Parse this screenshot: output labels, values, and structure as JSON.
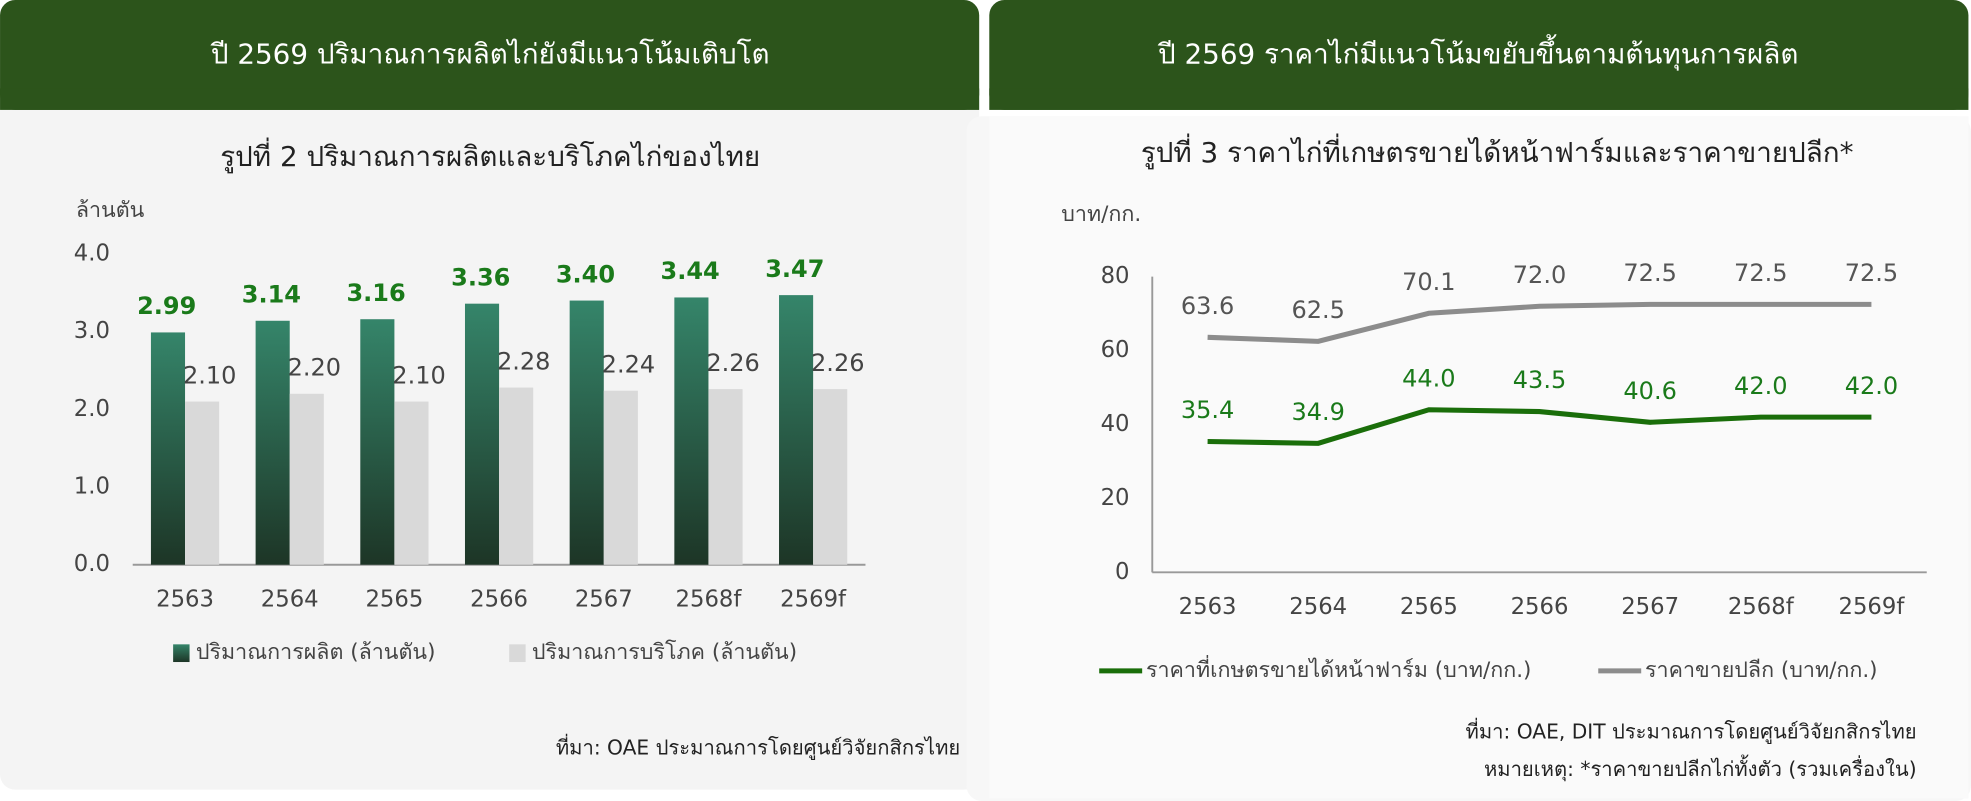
{
  "chart_data": [
    {
      "type": "bar",
      "header": "ปี 2569 ปริมาณการผลิตไก่ยังมีแนวโน้มเติบโต",
      "title": "รูปที่ 2  ปริมาณการผลิตและบริโภคไก่ของไทย",
      "ylabel": "ล้านตัน",
      "categories": [
        "2563",
        "2564",
        "2565",
        "2566",
        "2567",
        "2568f",
        "2569f"
      ],
      "series": [
        {
          "name": "ปริมาณการผลิต (ล้านตัน)",
          "color": "#2e7d5b",
          "values": [
            2.99,
            3.14,
            3.16,
            3.36,
            3.4,
            3.44,
            3.47
          ],
          "value_labels": [
            "2.99",
            "3.14",
            "3.16",
            "3.36",
            "3.40",
            "3.44",
            "3.47"
          ]
        },
        {
          "name": "ปริมาณการบริโภค (ล้านตัน)",
          "color": "#d9d9d9",
          "values": [
            2.1,
            2.2,
            2.1,
            2.28,
            2.24,
            2.26,
            2.26
          ],
          "value_labels": [
            "2.10",
            "2.20",
            "2.10",
            "2.28",
            "2.24",
            "2.26",
            "2.26"
          ]
        }
      ],
      "ylim": [
        0,
        4
      ],
      "yticks": [
        {
          "value": 0,
          "label": "0.0"
        },
        {
          "value": 1,
          "label": "1.0"
        },
        {
          "value": 2,
          "label": "2.0"
        },
        {
          "value": 3,
          "label": "3.0"
        },
        {
          "value": 4,
          "label": "4.0"
        }
      ],
      "grid": false,
      "notes": [
        "ที่มา: OAE ประมาณการโดยศูนย์วิจัยกสิกรไทย"
      ]
    },
    {
      "type": "line",
      "header": "ปี 2569 ราคาไก่มีแนวโน้มขยับขึ้นตามต้นทุนการผลิต",
      "title": "รูปที่ 3 ราคาไก่ที่เกษตรขายได้หน้าฟาร์มและราคาขายปลีก*",
      "ylabel": "บาท/กก.",
      "categories": [
        "2563",
        "2564",
        "2565",
        "2566",
        "2567",
        "2568f",
        "2569f"
      ],
      "series": [
        {
          "name": "ราคาที่เกษตรขายได้หน้าฟาร์ม (บาท/กก.)",
          "color": "#1a6e0a",
          "values": [
            35.4,
            34.9,
            44.0,
            43.5,
            40.6,
            42.0,
            42.0
          ],
          "value_labels": [
            "35.4",
            "34.9",
            "44.0",
            "43.5",
            "40.6",
            "42.0",
            "42.0"
          ]
        },
        {
          "name": "ราคาขายปลีก (บาท/กก.)",
          "color": "#8c8c8c",
          "values": [
            63.6,
            62.5,
            70.1,
            72.0,
            72.5,
            72.5,
            72.5
          ],
          "value_labels": [
            "63.6",
            "62.5",
            "70.1",
            "72.0",
            "72.5",
            "72.5",
            "72.5"
          ]
        }
      ],
      "ylim": [
        0,
        80
      ],
      "yticks": [
        0,
        20,
        40,
        60,
        80
      ],
      "grid": false,
      "notes": [
        "ที่มา: OAE, DIT ประมาณการโดยศูนย์วิจัยกสิกรไทย",
        "หมายเหตุ: *ราคาขายปลีกไก่ทั้งตัว (รวมเครื่องใน)"
      ]
    }
  ]
}
